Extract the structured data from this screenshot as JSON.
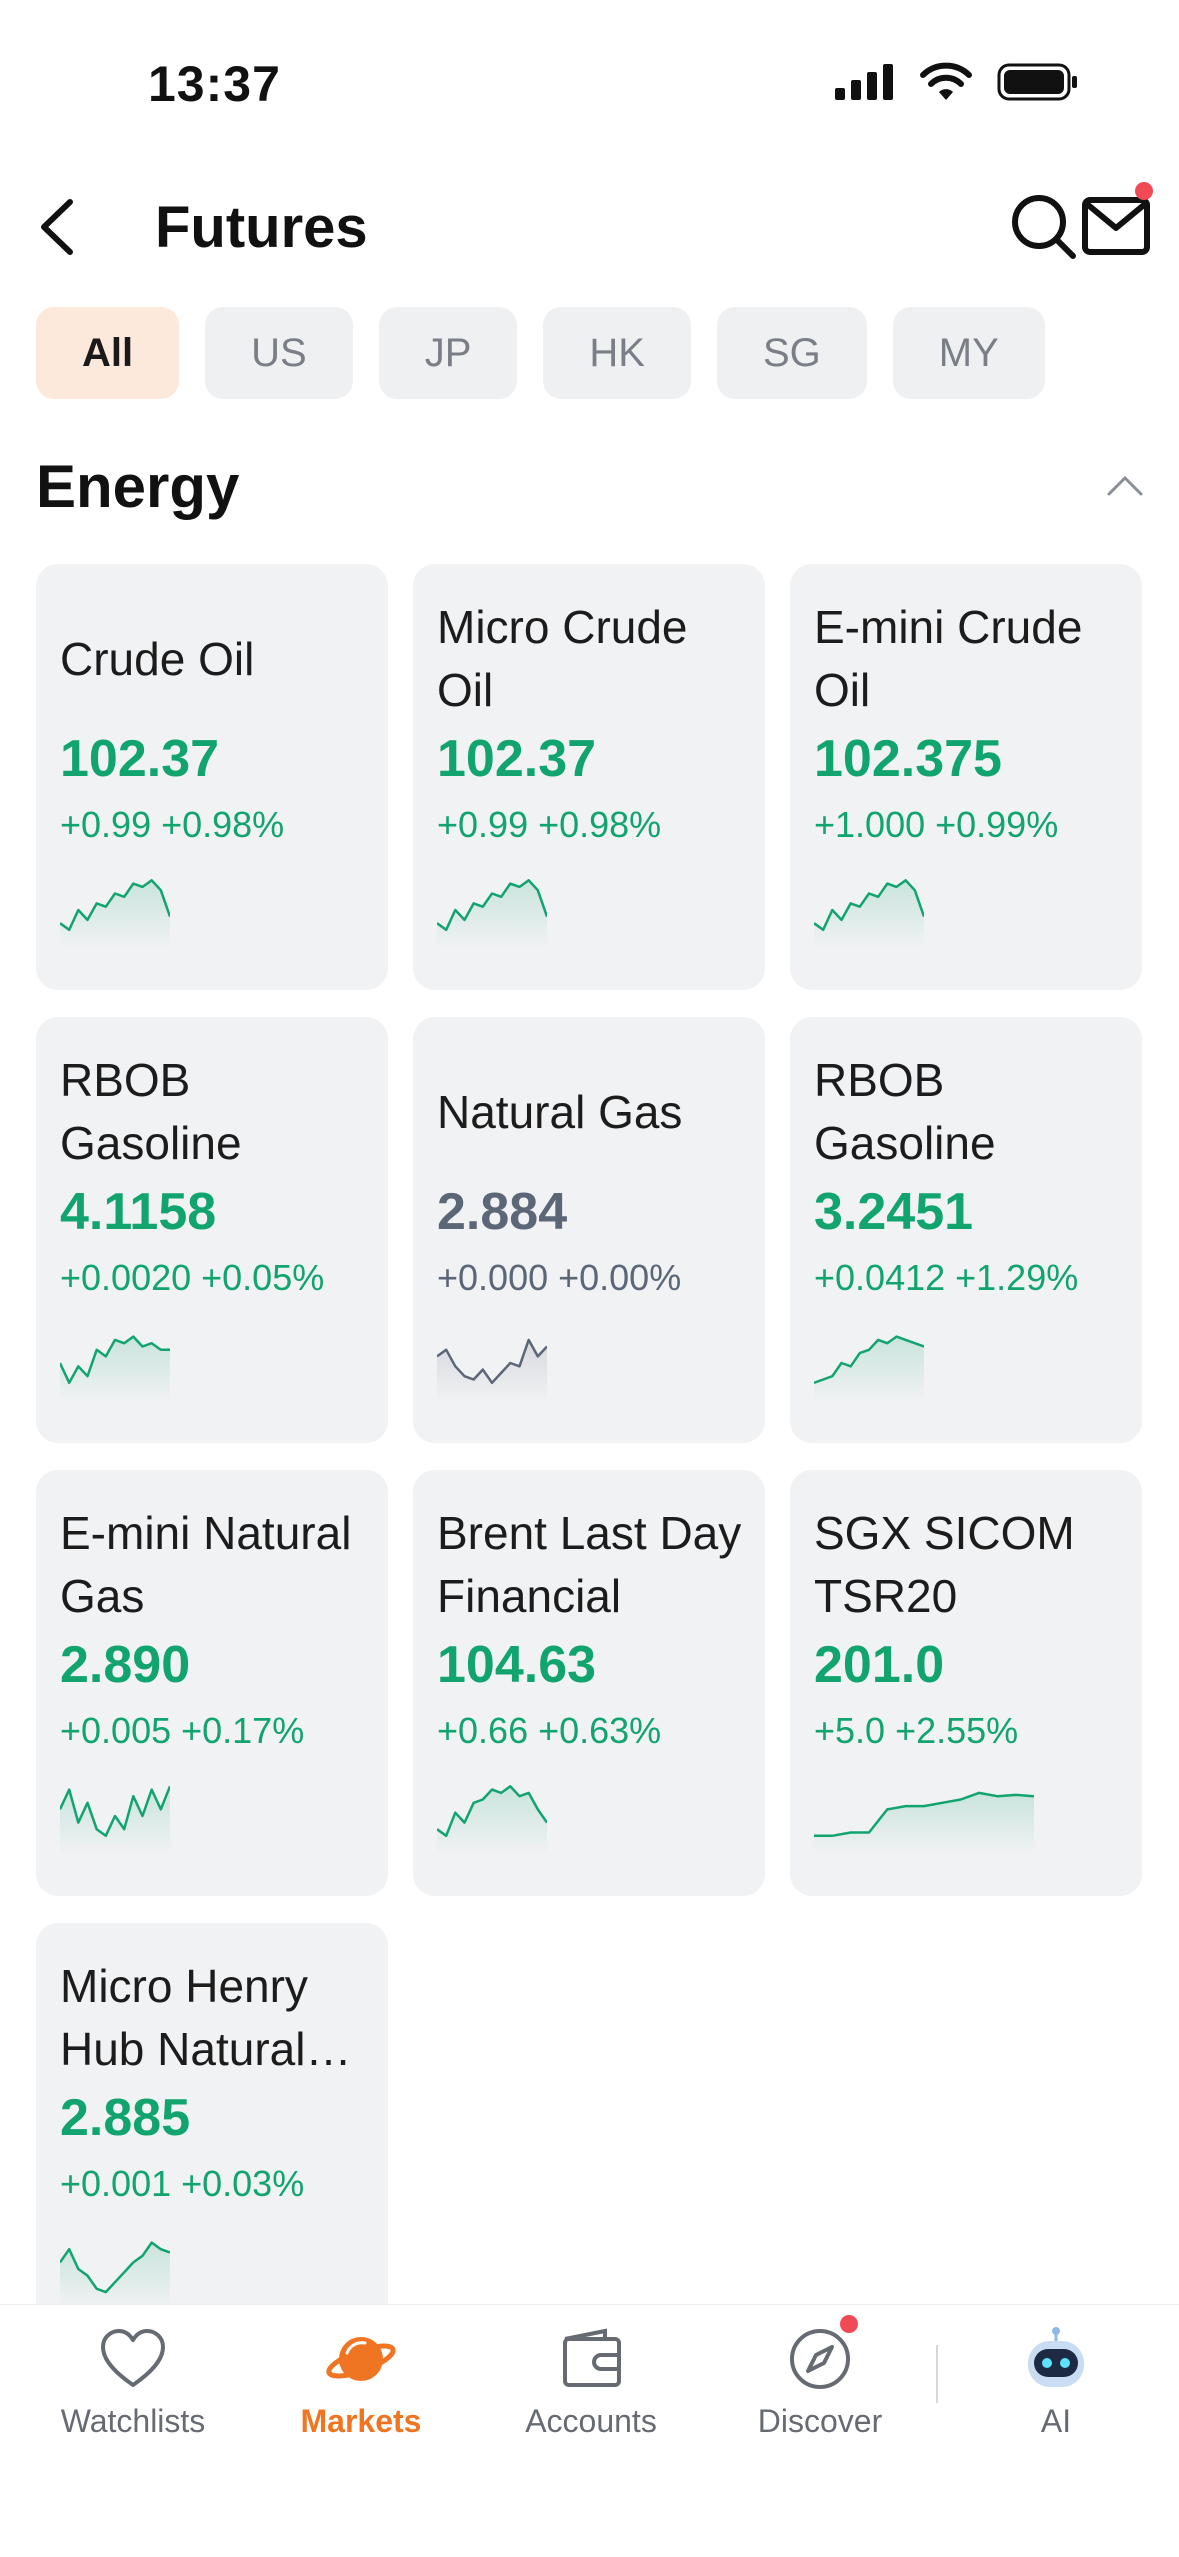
{
  "status_bar": {
    "time": "13:37"
  },
  "header": {
    "title": "Futures"
  },
  "filters": [
    {
      "label": "All",
      "active": true
    },
    {
      "label": "US",
      "active": false
    },
    {
      "label": "JP",
      "active": false
    },
    {
      "label": "HK",
      "active": false
    },
    {
      "label": "SG",
      "active": false
    },
    {
      "label": "MY",
      "active": false
    }
  ],
  "section": {
    "title": "Energy"
  },
  "cards": [
    {
      "name": "Crude Oil",
      "price": "102.37",
      "change": "+0.99 +0.98%",
      "trend": "up",
      "spark": [
        0.3,
        0.2,
        0.5,
        0.35,
        0.6,
        0.55,
        0.75,
        0.7,
        0.9,
        0.85,
        0.95,
        0.8,
        0.4
      ]
    },
    {
      "name": "Micro Crude Oil",
      "price": "102.37",
      "change": "+0.99 +0.98%",
      "trend": "up",
      "spark": [
        0.3,
        0.2,
        0.5,
        0.35,
        0.6,
        0.55,
        0.75,
        0.7,
        0.9,
        0.85,
        0.95,
        0.8,
        0.4
      ]
    },
    {
      "name": "E-mini Crude Oil",
      "price": "102.375",
      "change": "+1.000 +0.99%",
      "trend": "up",
      "spark": [
        0.3,
        0.2,
        0.5,
        0.35,
        0.6,
        0.55,
        0.75,
        0.7,
        0.9,
        0.85,
        0.95,
        0.8,
        0.4
      ]
    },
    {
      "name": "RBOB Gasoline",
      "price": "4.1158",
      "change": "+0.0020 +0.05%",
      "trend": "up",
      "spark": [
        0.5,
        0.2,
        0.45,
        0.3,
        0.7,
        0.6,
        0.85,
        0.8,
        0.9,
        0.75,
        0.8,
        0.7,
        0.7
      ]
    },
    {
      "name": "Natural Gas",
      "price": "2.884",
      "change": "+0.000 +0.00%",
      "trend": "flat",
      "spark": [
        0.6,
        0.7,
        0.45,
        0.3,
        0.25,
        0.4,
        0.2,
        0.35,
        0.5,
        0.45,
        0.85,
        0.6,
        0.75
      ]
    },
    {
      "name": "RBOB Gasoline",
      "price": "3.2451",
      "change": "+0.0412 +1.29%",
      "trend": "up",
      "spark": [
        0.2,
        0.25,
        0.3,
        0.5,
        0.45,
        0.65,
        0.7,
        0.85,
        0.8,
        0.9,
        0.85,
        0.8,
        0.75
      ]
    },
    {
      "name": "E-mini Natural Gas",
      "price": "2.890",
      "change": "+0.005 +0.17%",
      "trend": "up",
      "spark": [
        0.6,
        0.9,
        0.4,
        0.7,
        0.3,
        0.2,
        0.5,
        0.3,
        0.8,
        0.5,
        0.9,
        0.6,
        0.95
      ]
    },
    {
      "name": "Brent Last Day Financial",
      "price": "104.63",
      "change": "+0.66 +0.63%",
      "trend": "up",
      "spark": [
        0.3,
        0.2,
        0.55,
        0.4,
        0.7,
        0.75,
        0.9,
        0.85,
        0.95,
        0.8,
        0.85,
        0.6,
        0.4
      ]
    },
    {
      "name": "SGX SICOM TSR20",
      "price": "201.0",
      "change": "+5.0 +2.55%",
      "trend": "up",
      "spark": [
        0.2,
        0.2,
        0.25,
        0.25,
        0.6,
        0.65,
        0.65,
        0.7,
        0.75,
        0.85,
        0.8,
        0.82,
        0.8
      ],
      "wide": true
    },
    {
      "name": "Micro Henry Hub Natural Gas",
      "price": "2.885",
      "change": "+0.001 +0.03%",
      "trend": "up",
      "spark": [
        0.6,
        0.8,
        0.5,
        0.4,
        0.2,
        0.15,
        0.3,
        0.45,
        0.6,
        0.7,
        0.9,
        0.8,
        0.75
      ]
    }
  ],
  "nav": {
    "watchlists": "Watchlists",
    "markets": "Markets",
    "accounts": "Accounts",
    "discover": "Discover",
    "ai": "AI"
  },
  "colors": {
    "up": "#11a46f",
    "flat": "#5b6677",
    "accent": "#f07522",
    "badge": "#f24957"
  }
}
